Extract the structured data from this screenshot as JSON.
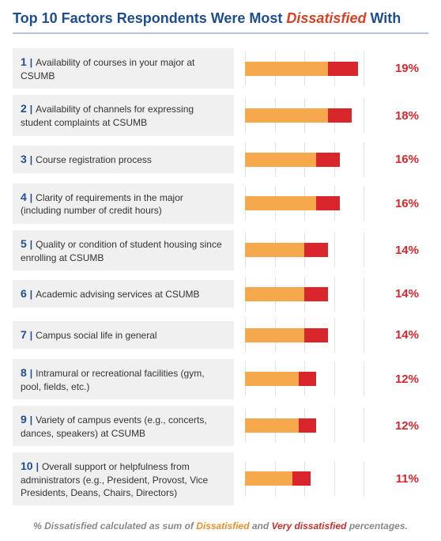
{
  "title": {
    "prefix": "Top 10 Factors Respondents Were Most ",
    "emphasis": "Dissatisfied",
    "suffix": " With",
    "prefix_color": "#1f4e8c",
    "emphasis_color": "#d94126",
    "fontsize": 18
  },
  "chart": {
    "type": "bar",
    "orientation": "horizontal",
    "stacked": true,
    "x_max_pct": 20,
    "grid_ticks": [
      0,
      5,
      10,
      15,
      20
    ],
    "grid_color": "#e3e3e3",
    "row_bg": "#f0f0f0",
    "rank_color": "#1f4e8c",
    "label_color": "#333333",
    "label_fontsize": 12,
    "pct_fontsize": 15,
    "segments": [
      {
        "key": "dissatisfied",
        "color": "#f5a94c"
      },
      {
        "key": "very_dissatisfied",
        "color": "#d8262c"
      }
    ]
  },
  "rows": [
    {
      "rank": "1",
      "label": "Availability of courses in your major at CSUMB",
      "total_pct": 19,
      "total_display": "19%",
      "pct_color": "#d8262c",
      "dissatisfied": 14,
      "very_dissatisfied": 5
    },
    {
      "rank": "2",
      "label": "Availability of channels for expressing student complaints at CSUMB",
      "total_pct": 18,
      "total_display": "18%",
      "pct_color": "#d8262c",
      "dissatisfied": 14,
      "very_dissatisfied": 4
    },
    {
      "rank": "3",
      "label": "Course registration process",
      "total_pct": 16,
      "total_display": "16%",
      "pct_color": "#d8262c",
      "dissatisfied": 12,
      "very_dissatisfied": 4
    },
    {
      "rank": "4",
      "label": "Clarity of requirements in the major (including number of credit hours)",
      "total_pct": 16,
      "total_display": "16%",
      "pct_color": "#d8262c",
      "dissatisfied": 12,
      "very_dissatisfied": 4
    },
    {
      "rank": "5",
      "label": "Quality or condition of student housing since enrolling at CSUMB",
      "total_pct": 14,
      "total_display": "14%",
      "pct_color": "#d8262c",
      "dissatisfied": 10,
      "very_dissatisfied": 4
    },
    {
      "rank": "6",
      "label": "Academic advising services at CSUMB",
      "total_pct": 14,
      "total_display": "14%",
      "pct_color": "#d8262c",
      "dissatisfied": 10,
      "very_dissatisfied": 4
    },
    {
      "rank": "7",
      "label": "Campus social life in general",
      "total_pct": 14,
      "total_display": "14%",
      "pct_color": "#d8262c",
      "dissatisfied": 10,
      "very_dissatisfied": 4
    },
    {
      "rank": "8",
      "label": "Intramural or recreational facilities (gym, pool, fields, etc.)",
      "total_pct": 12,
      "total_display": "12%",
      "pct_color": "#d8262c",
      "dissatisfied": 9,
      "very_dissatisfied": 3
    },
    {
      "rank": "9",
      "label": "Variety of campus events (e.g., concerts, dances, speakers) at CSUMB",
      "total_pct": 12,
      "total_display": "12%",
      "pct_color": "#d8262c",
      "dissatisfied": 9,
      "very_dissatisfied": 3
    },
    {
      "rank": "10",
      "label": "Overall support or helpfulness from administrators (e.g., President, Provost, Vice Presidents, Deans, Chairs, Directors)",
      "total_pct": 11,
      "total_display": "11%",
      "pct_color": "#d8262c",
      "dissatisfied": 8,
      "very_dissatisfied": 3
    }
  ],
  "footnote": {
    "prefix": "% Dissatisfied calculated as sum of ",
    "term1": "Dissatisfied",
    "mid": " and ",
    "term2": "Very dissatisfied",
    "suffix": " percentages.",
    "base_color": "#888888",
    "term1_color": "#e98f2a",
    "term2_color": "#c4302b",
    "fontsize": 12
  }
}
